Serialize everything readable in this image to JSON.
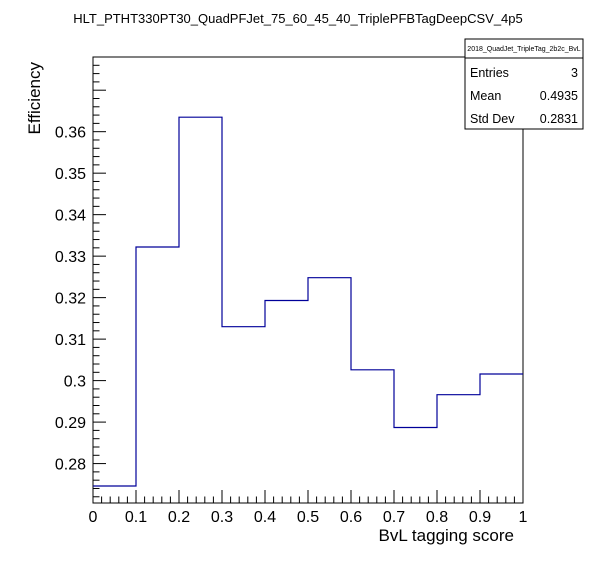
{
  "chart_data": {
    "type": "histogram-step",
    "title": "HLT_PTHT330PT30_QuadPFJet_75_60_45_40_TriplePFBTagDeepCSV_4p5",
    "xlabel": "BvL tagging score",
    "ylabel": "Efficiency",
    "xlim": [
      0,
      1
    ],
    "ylim": [
      0.2705,
      0.378
    ],
    "x_ticks": [
      "0",
      "0.1",
      "0.2",
      "0.3",
      "0.4",
      "0.5",
      "0.6",
      "0.7",
      "0.8",
      "0.9",
      "1"
    ],
    "y_ticks": [
      "0.28",
      "0.29",
      "0.3",
      "0.31",
      "0.32",
      "0.33",
      "0.34",
      "0.35",
      "0.36"
    ],
    "bin_edges": [
      0,
      0.1,
      0.2,
      0.3,
      0.4,
      0.5,
      0.6,
      0.7,
      0.8,
      0.9,
      1.0
    ],
    "series": [
      {
        "values": [
          0.2746,
          0.3322,
          0.3635,
          0.313,
          0.3193,
          0.3248,
          0.3026,
          0.2887,
          0.2966,
          0.3016
        ],
        "color": "#000099"
      }
    ],
    "grid": false,
    "stats_box": {
      "title": "2018_QuadJet_TripleTag_2b2c_BvL",
      "entries_label": "Entries",
      "entries_value": "3",
      "mean_label": "Mean",
      "mean_value": "0.4935",
      "stddev_label": "Std Dev",
      "stddev_value": "0.2831",
      "placement": "top-right"
    }
  }
}
